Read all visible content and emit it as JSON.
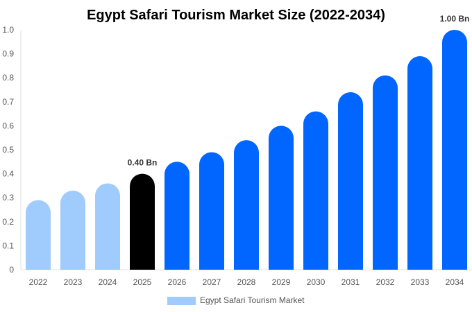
{
  "chart_data": {
    "type": "bar",
    "title": "Egypt Safari Tourism Market Size (2022-2034)",
    "categories": [
      "2022",
      "2023",
      "2024",
      "2025",
      "2026",
      "2027",
      "2028",
      "2029",
      "2030",
      "2031",
      "2032",
      "2033",
      "2034"
    ],
    "series": [
      {
        "name": "Egypt Safari Tourism Market",
        "values": [
          0.29,
          0.33,
          0.36,
          0.4,
          0.45,
          0.49,
          0.54,
          0.6,
          0.66,
          0.74,
          0.81,
          0.89,
          1.0
        ]
      }
    ],
    "ylim": [
      0,
      1.0
    ],
    "yticks": [
      "0",
      "0.1",
      "0.2",
      "0.3",
      "0.4",
      "0.5",
      "0.6",
      "0.7",
      "0.8",
      "0.9",
      "1.0"
    ],
    "data_labels": [
      {
        "category": "2025",
        "text": "0.40 Bn"
      },
      {
        "category": "2034",
        "text": "1.00 Bn"
      }
    ],
    "grid": false,
    "legend": "bottom",
    "colors": {
      "historical": "#a0cbfd",
      "current": "#000000",
      "forecast": "#0066ff"
    }
  }
}
